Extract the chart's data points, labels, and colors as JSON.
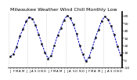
{
  "title": "Milwaukee Weather Wind Chill Monthly Low",
  "bg_color": "#ffffff",
  "line_color": "#0000bb",
  "values": [
    5,
    8,
    18,
    32,
    42,
    52,
    58,
    56,
    47,
    35,
    22,
    10,
    2,
    6,
    20,
    33,
    43,
    54,
    60,
    57,
    48,
    36,
    20,
    8,
    -2,
    4,
    16,
    30,
    41,
    53,
    59,
    55,
    46,
    34,
    19,
    7
  ],
  "ylim": [
    -10,
    65
  ],
  "yticks": [
    -10,
    0,
    10,
    20,
    30,
    40,
    50,
    60
  ],
  "ytick_labels": [
    "-10",
    "0",
    "10",
    "20",
    "30",
    "40",
    "50",
    "60"
  ],
  "num_points": 36,
  "vgrid_every": 6,
  "title_fontsize": 4.5,
  "tick_fontsize": 3.2,
  "line_width": 0.7,
  "marker_size": 1.3
}
